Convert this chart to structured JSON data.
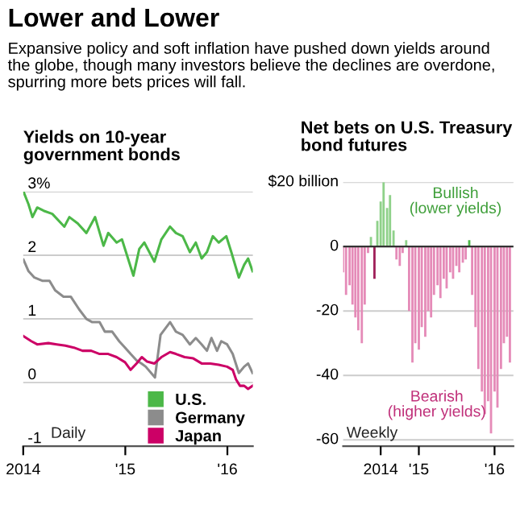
{
  "chart_data": [
    {
      "type": "other",
      "title": "Lower and Lower",
      "subtitle": "Expansive policy and soft inflation have pushed down yields around the globe, though many investors believe the declines are overdone, spurring more bets prices will fall."
    },
    {
      "type": "line",
      "title": "Yields on 10-year\ngovernment bonds",
      "xlim": [
        "2014-01-01",
        "2016-04-01"
      ],
      "xticks": [
        {
          "value": "2014-01-01",
          "label": "2014"
        },
        {
          "value": "2015-01-01",
          "label": "'15"
        },
        {
          "value": "2016-01-01",
          "label": "'16"
        }
      ],
      "ylim": [
        -1,
        3
      ],
      "yticks": [
        {
          "value": 3,
          "label": "3%"
        },
        2,
        1,
        0,
        -1
      ],
      "grid": "y",
      "legend": "bottom right",
      "annotations": [
        "Daily"
      ],
      "series": [
        {
          "name": "U.S.",
          "color": "#4cb848",
          "x": [
            "2014-01-02",
            "2014-01-20",
            "2014-02-03",
            "2014-02-20",
            "2014-03-15",
            "2014-04-15",
            "2014-05-28",
            "2014-06-15",
            "2014-07-15",
            "2014-08-15",
            "2014-09-15",
            "2014-10-15",
            "2014-11-01",
            "2014-12-01",
            "2014-12-20",
            "2015-01-30",
            "2015-02-20",
            "2015-03-10",
            "2015-04-15",
            "2015-05-10",
            "2015-06-10",
            "2015-07-01",
            "2015-07-25",
            "2015-08-20",
            "2015-09-10",
            "2015-10-01",
            "2015-10-20",
            "2015-11-10",
            "2015-12-01",
            "2015-12-28",
            "2016-01-15",
            "2016-02-11",
            "2016-03-01",
            "2016-03-15",
            "2016-03-31"
          ],
          "values": [
            3.0,
            2.8,
            2.6,
            2.75,
            2.7,
            2.65,
            2.45,
            2.6,
            2.5,
            2.35,
            2.6,
            2.15,
            2.35,
            2.2,
            2.25,
            1.68,
            2.1,
            2.2,
            1.9,
            2.25,
            2.45,
            2.35,
            2.3,
            2.05,
            2.2,
            1.95,
            2.05,
            2.3,
            2.2,
            2.3,
            2.05,
            1.65,
            1.85,
            1.95,
            1.75
          ]
        },
        {
          "name": "Germany",
          "color": "#8c8c8c",
          "x": [
            "2014-01-02",
            "2014-01-20",
            "2014-02-10",
            "2014-03-10",
            "2014-04-05",
            "2014-04-25",
            "2014-05-25",
            "2014-06-20",
            "2014-07-20",
            "2014-08-15",
            "2014-09-05",
            "2014-10-01",
            "2014-10-20",
            "2014-11-15",
            "2014-12-10",
            "2014-12-31",
            "2015-01-20",
            "2015-02-10",
            "2015-02-28",
            "2015-03-15",
            "2015-04-17",
            "2015-05-07",
            "2015-06-10",
            "2015-07-01",
            "2015-07-25",
            "2015-08-20",
            "2015-09-10",
            "2015-10-01",
            "2015-10-20",
            "2015-11-05",
            "2015-11-25",
            "2015-12-10",
            "2015-12-31",
            "2016-01-20",
            "2016-02-11",
            "2016-03-01",
            "2016-03-15",
            "2016-03-31"
          ],
          "values": [
            1.93,
            1.75,
            1.65,
            1.6,
            1.6,
            1.45,
            1.35,
            1.35,
            1.15,
            1.0,
            0.95,
            0.95,
            0.8,
            0.8,
            0.65,
            0.55,
            0.45,
            0.35,
            0.3,
            0.25,
            0.08,
            0.75,
            0.95,
            0.8,
            0.75,
            0.6,
            0.7,
            0.6,
            0.5,
            0.7,
            0.5,
            0.65,
            0.6,
            0.45,
            0.15,
            0.25,
            0.3,
            0.15
          ]
        },
        {
          "name": "Japan",
          "color": "#cc0066",
          "x": [
            "2014-01-02",
            "2014-01-30",
            "2014-02-20",
            "2014-04-01",
            "2014-05-01",
            "2014-06-01",
            "2014-07-01",
            "2014-08-01",
            "2014-09-01",
            "2014-10-01",
            "2014-11-01",
            "2014-12-01",
            "2014-12-31",
            "2015-01-20",
            "2015-02-10",
            "2015-03-01",
            "2015-03-20",
            "2015-04-15",
            "2015-05-10",
            "2015-06-10",
            "2015-07-01",
            "2015-08-01",
            "2015-09-01",
            "2015-10-01",
            "2015-11-01",
            "2015-12-01",
            "2015-12-31",
            "2016-01-20",
            "2016-02-01",
            "2016-02-15",
            "2016-03-01",
            "2016-03-15",
            "2016-03-31"
          ],
          "values": [
            0.73,
            0.65,
            0.6,
            0.62,
            0.6,
            0.58,
            0.55,
            0.5,
            0.5,
            0.45,
            0.45,
            0.4,
            0.32,
            0.2,
            0.3,
            0.4,
            0.33,
            0.3,
            0.4,
            0.48,
            0.45,
            0.4,
            0.38,
            0.3,
            0.3,
            0.28,
            0.25,
            0.2,
            0.05,
            -0.05,
            -0.05,
            -0.1,
            -0.05
          ]
        }
      ]
    },
    {
      "type": "bar",
      "title": "Net bets on U.S. Treasury\nbond futures",
      "xlim": [
        "2014-01-01",
        "2016-04-01"
      ],
      "xticks": [
        {
          "value": "2014-07-01",
          "label": "2014"
        },
        {
          "value": "2015-01-01",
          "label": "'15"
        },
        {
          "value": "2016-01-01",
          "label": "'16"
        }
      ],
      "ylim": [
        -62,
        20
      ],
      "yticks": [
        {
          "value": 20,
          "label": "$20 billion"
        },
        0,
        -20,
        -40,
        -60
      ],
      "grid": "y",
      "annotations": [
        "Bullish\n(lower yields)",
        "Bearish\n(higher yields)",
        "Weekly"
      ],
      "x": [
        "2014-01-01",
        "2014-01-15",
        "2014-02-01",
        "2014-02-15",
        "2014-03-01",
        "2014-03-15",
        "2014-04-01",
        "2014-04-15",
        "2014-05-01",
        "2014-05-15",
        "2014-06-01",
        "2014-06-15",
        "2014-07-01",
        "2014-07-15",
        "2014-08-01",
        "2014-08-15",
        "2014-09-01",
        "2014-09-15",
        "2014-10-01",
        "2014-10-15",
        "2014-11-01",
        "2014-11-15",
        "2014-12-01",
        "2014-12-15",
        "2015-01-01",
        "2015-01-15",
        "2015-02-01",
        "2015-02-15",
        "2015-03-01",
        "2015-03-15",
        "2015-04-01",
        "2015-04-15",
        "2015-05-01",
        "2015-05-15",
        "2015-06-01",
        "2015-06-15",
        "2015-07-01",
        "2015-07-15",
        "2015-08-01",
        "2015-08-15",
        "2015-09-01",
        "2015-09-15",
        "2015-10-01",
        "2015-10-15",
        "2015-11-01",
        "2015-11-15",
        "2015-12-01",
        "2015-12-15",
        "2016-01-01",
        "2016-01-15",
        "2016-02-01",
        "2016-02-15",
        "2016-03-01",
        "2016-03-15"
      ],
      "values": [
        -8,
        -15,
        -12,
        -18,
        -22,
        -26,
        -30,
        -18,
        -2,
        3,
        -10,
        8,
        14,
        20,
        12,
        16,
        5,
        -4,
        -6,
        -2,
        2,
        -20,
        -36,
        -30,
        -32,
        -25,
        -28,
        -20,
        -22,
        -15,
        -12,
        -16,
        -10,
        -13,
        -8,
        -10,
        -6,
        -8,
        -5,
        -4,
        2,
        -15,
        -25,
        -38,
        -45,
        -52,
        -48,
        -58,
        -45,
        -50,
        -38,
        -30,
        -28,
        -36
      ],
      "colors": [
        "#e58bb8",
        "#e58bb8",
        "#e58bb8",
        "#e58bb8",
        "#e58bb8",
        "#e58bb8",
        "#e58bb8",
        "#e58bb8",
        "#e58bb8",
        "#8fd18a",
        "#a0205a",
        "#8fd18a",
        "#8fd18a",
        "#8fd18a",
        "#8fd18a",
        "#8fd18a",
        "#8fd18a",
        "#e58bb8",
        "#e58bb8",
        "#e58bb8",
        "#8fd18a",
        "#e58bb8",
        "#e58bb8",
        "#e58bb8",
        "#e58bb8",
        "#e58bb8",
        "#e58bb8",
        "#e58bb8",
        "#e58bb8",
        "#e58bb8",
        "#e58bb8",
        "#e58bb8",
        "#e58bb8",
        "#e58bb8",
        "#e58bb8",
        "#e58bb8",
        "#e58bb8",
        "#e58bb8",
        "#e58bb8",
        "#e58bb8",
        "#4cb848",
        "#e58bb8",
        "#e58bb8",
        "#e58bb8",
        "#e58bb8",
        "#e58bb8",
        "#e58bb8",
        "#e58bb8",
        "#e58bb8",
        "#e58bb8",
        "#e58bb8",
        "#e58bb8",
        "#e58bb8",
        "#e58bb8"
      ]
    }
  ]
}
